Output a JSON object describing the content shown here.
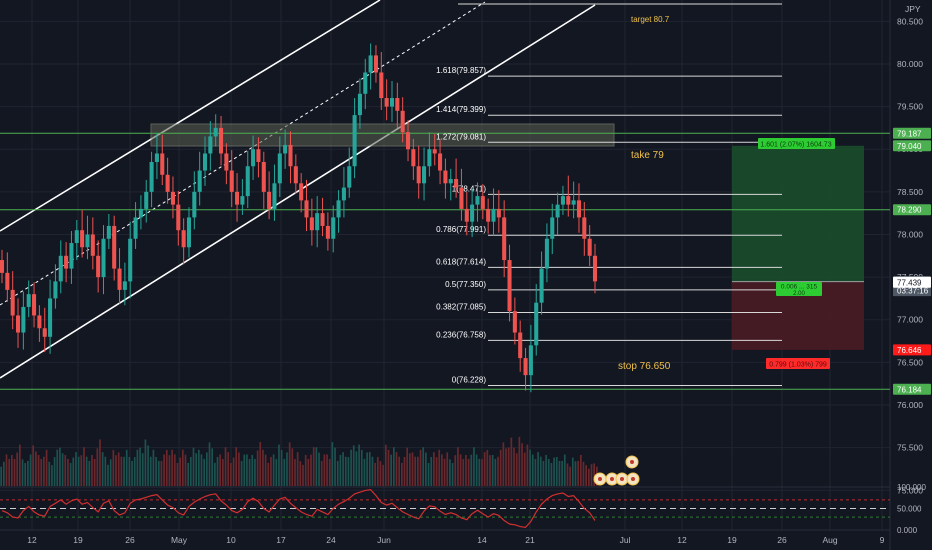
{
  "chart_data": {
    "type": "candlestick",
    "currency_label": "JPY",
    "x_tick_labels": [
      "12",
      "19",
      "26",
      "May",
      "10",
      "17",
      "24",
      "Jun",
      "14",
      "21",
      "Jul",
      "12",
      "19",
      "26",
      "Aug",
      "9"
    ],
    "price_axis": {
      "range": [
        75.05,
        80.75
      ],
      "tick_labels": [
        "80.500",
        "80.000",
        "79.500",
        "79.000",
        "78.500",
        "78.000",
        "77.500",
        "77.000",
        "76.500",
        "76.000",
        "75.500",
        "75.000"
      ],
      "tick_values": [
        80.5,
        80.0,
        79.5,
        79.0,
        78.5,
        78.0,
        77.5,
        77.0,
        76.5,
        76.0,
        75.5,
        75.0
      ]
    },
    "price_tags": [
      {
        "label": "79.187",
        "value": 79.187,
        "color": "#4caf50"
      },
      {
        "label": "79.040",
        "value": 79.04,
        "color": "#4caf50"
      },
      {
        "label": "78.290",
        "value": 78.29,
        "color": "#4caf50"
      },
      {
        "label": "77.447",
        "value": 77.447,
        "color": "#4f5966",
        "sublabel": "03:37:16"
      },
      {
        "label": "77.439",
        "value": 77.439,
        "color": "#ffffff"
      },
      {
        "label": "76.646",
        "value": 76.646,
        "color": "#ff1a1a"
      },
      {
        "label": "76.184",
        "value": 76.184,
        "color": "#4caf50"
      }
    ],
    "horizontal_levels": [
      79.187,
      78.29,
      76.184
    ],
    "fibonacci": [
      {
        "label": "1.618(79.857)",
        "value": 79.857
      },
      {
        "label": "1.414(79.399)",
        "value": 79.399
      },
      {
        "label": "1.272(79.081)",
        "value": 79.081
      },
      {
        "label": "1(78.471)",
        "value": 78.471
      },
      {
        "label": "0.786(77.991)",
        "value": 77.991
      },
      {
        "label": "0.618(77.614)",
        "value": 77.614
      },
      {
        "label": "0.5(77.350)",
        "value": 77.35
      },
      {
        "label": "0.382(77.085)",
        "value": 77.085
      },
      {
        "label": "0.236(76.758)",
        "value": 76.758
      },
      {
        "label": "0(76.228)",
        "value": 76.228
      }
    ],
    "annotations": {
      "target": "target 80.7",
      "take": "take 79",
      "stop": "stop 76.650"
    },
    "position": {
      "entry": 77.447,
      "target": 79.04,
      "stop": 76.646,
      "target_label": "1.601 (2.07%) 1604.73",
      "entry_label": "0.006 ... 315",
      "entry_sublabel": "2.00",
      "stop_label": "0.799 (1.03%) 799"
    },
    "close_series": [
      77.55,
      77.35,
      77.05,
      76.85,
      77.15,
      77.3,
      77.05,
      76.9,
      76.8,
      77.25,
      77.45,
      77.75,
      77.6,
      77.9,
      78.05,
      77.85,
      78.0,
      77.75,
      77.5,
      77.95,
      78.1,
      77.6,
      77.35,
      77.45,
      77.95,
      78.2,
      78.3,
      78.5,
      78.85,
      78.95,
      78.7,
      78.5,
      78.35,
      78.05,
      77.85,
      78.2,
      78.5,
      78.75,
      78.95,
      79.15,
      79.25,
      78.95,
      78.75,
      78.5,
      78.35,
      78.45,
      78.8,
      79.0,
      78.85,
      78.5,
      78.3,
      78.6,
      78.95,
      79.05,
      78.8,
      78.6,
      78.4,
      78.2,
      78.05,
      78.25,
      78.1,
      77.95,
      78.2,
      78.4,
      78.55,
      78.8,
      79.4,
      79.65,
      79.9,
      80.1,
      79.9,
      79.6,
      79.5,
      79.6,
      79.45,
      79.2,
      79.0,
      78.8,
      78.6,
      78.8,
      79.0,
      78.95,
      78.75,
      78.6,
      78.65,
      78.55,
      78.3,
      78.15,
      78.35,
      78.45,
      78.3,
      78.15,
      78.3,
      78.2,
      77.7,
      77.1,
      76.85,
      76.55,
      76.35,
      76.7,
      77.2,
      77.6,
      77.95,
      78.2,
      78.35,
      78.45,
      78.35,
      78.4,
      78.2,
      77.95,
      77.75,
      77.45
    ],
    "volume_series": [
      0.5,
      0.7,
      0.6,
      0.8,
      0.55,
      0.65,
      0.9,
      0.6,
      0.7,
      0.5,
      0.75,
      0.85,
      0.6,
      0.55,
      0.7,
      0.8,
      0.65,
      0.6,
      0.9,
      0.7,
      0.55,
      0.8,
      0.65,
      0.7,
      0.6,
      0.75,
      0.85,
      0.9,
      0.7,
      0.6,
      0.65,
      0.8,
      0.7,
      0.55,
      0.75,
      0.6,
      0.85,
      0.7,
      0.65,
      0.9,
      0.6,
      0.7,
      0.75,
      0.55,
      0.8,
      0.65,
      0.7,
      0.6,
      0.85,
      0.75,
      0.6,
      0.7,
      0.8,
      0.65,
      0.9,
      0.7,
      0.55,
      0.6,
      0.75,
      0.8,
      0.65,
      0.7,
      0.85,
      0.6,
      0.7,
      0.75,
      0.9,
      0.8,
      0.65,
      0.7,
      0.6,
      0.55,
      0.8,
      0.75,
      0.7,
      0.6,
      0.85,
      0.65,
      0.7,
      0.8,
      0.6,
      0.75,
      0.7,
      0.65,
      0.55,
      0.8,
      0.7,
      0.6,
      0.75,
      0.65,
      0.7,
      0.8,
      0.6,
      0.7,
      0.9,
      1.0,
      0.85,
      0.95,
      0.8,
      0.75,
      0.7,
      0.65,
      0.6,
      0.55,
      0.6,
      0.65,
      0.5,
      0.55,
      0.6,
      0.5,
      0.45,
      0.5
    ],
    "rsi": {
      "tick_labels": [
        "100.000",
        "50.000",
        "0.000"
      ],
      "range": [
        0,
        100
      ],
      "levels": [
        70,
        50,
        30
      ],
      "values": [
        45,
        40,
        30,
        28,
        45,
        55,
        42,
        35,
        32,
        55,
        62,
        70,
        60,
        68,
        72,
        60,
        64,
        52,
        42,
        62,
        68,
        45,
        35,
        40,
        62,
        70,
        72,
        76,
        80,
        82,
        70,
        58,
        52,
        40,
        35,
        55,
        65,
        72,
        78,
        82,
        84,
        68,
        58,
        45,
        40,
        48,
        66,
        74,
        66,
        50,
        42,
        58,
        72,
        76,
        62,
        52,
        42,
        36,
        32,
        48,
        42,
        36,
        50,
        60,
        66,
        74,
        84,
        88,
        92,
        94,
        80,
        64,
        58,
        62,
        52,
        42,
        36,
        30,
        26,
        44,
        56,
        54,
        44,
        36,
        40,
        36,
        28,
        24,
        38,
        46,
        38,
        30,
        38,
        34,
        22,
        14,
        12,
        8,
        6,
        20,
        42,
        60,
        72,
        80,
        84,
        86,
        78,
        80,
        66,
        50,
        40,
        22
      ]
    }
  }
}
